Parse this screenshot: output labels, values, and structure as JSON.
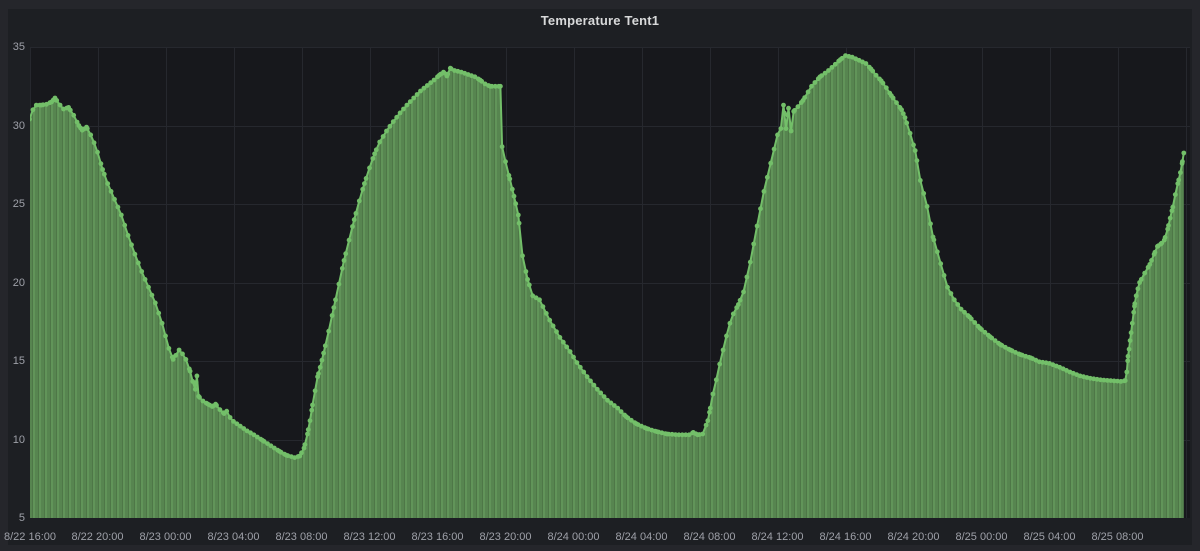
{
  "panel": {
    "title": "Temperature Tent1"
  },
  "colors": {
    "outer_background": "#25262b",
    "panel_background": "#1d1f23",
    "plot_background": "#17181c",
    "grid_line": "#26282e",
    "axis_label_text": "#9ea0a8",
    "title_text": "#d8d9da",
    "series_line": "#73bf69",
    "fill_stripe_dark": "#4e7747",
    "fill_stripe_mid": "#578550",
    "fill_stripe_light": "#619459"
  },
  "y_axis": {
    "tick_labels": [
      "35",
      "30",
      "25",
      "20",
      "15",
      "10",
      "5"
    ],
    "min": 5,
    "max": 35
  },
  "x_axis": {
    "tick_labels": [
      "8/22 16:00",
      "8/22 20:00",
      "8/23 00:00",
      "8/23 04:00",
      "8/23 08:00",
      "8/23 12:00",
      "8/23 16:00",
      "8/23 20:00",
      "8/24 00:00",
      "8/24 04:00",
      "8/24 08:00",
      "8/24 12:00",
      "8/24 16:00",
      "8/24 20:00",
      "8/25 00:00",
      "8/25 04:00",
      "8/25 08:00"
    ],
    "interval_hours": 4
  },
  "chart_data": {
    "type": "line",
    "title": "Temperature Tent1",
    "grid": true,
    "legend": false,
    "ylim": [
      5,
      35
    ],
    "y_ticks": [
      35,
      30,
      25,
      20,
      15,
      10,
      5
    ],
    "x_tick_labels": [
      "8/22 16:00",
      "8/22 20:00",
      "8/23 00:00",
      "8/23 04:00",
      "8/23 08:00",
      "8/23 12:00",
      "8/23 16:00",
      "8/23 20:00",
      "8/24 00:00",
      "8/24 04:00",
      "8/24 08:00",
      "8/24 12:00",
      "8/24 16:00",
      "8/24 20:00",
      "8/25 00:00",
      "8/25 04:00",
      "8/25 08:00"
    ],
    "x_tick_interval_hours": 4,
    "x_span_hours": 68,
    "x_unit": "hours after 8/22 16:00",
    "style": {
      "points_visible": true,
      "area_fill": "striped-green",
      "line_color": "#73bf69"
    },
    "series": [
      {
        "name": "Temperature Tent1",
        "points": [
          [
            0,
            30.4
          ],
          [
            0.2,
            31.0
          ],
          [
            0.4,
            31.3
          ],
          [
            0.7,
            31.3
          ],
          [
            1.0,
            31.35
          ],
          [
            1.3,
            31.5
          ],
          [
            1.5,
            31.75
          ],
          [
            1.8,
            31.3
          ],
          [
            2.0,
            31.05
          ],
          [
            2.3,
            31.15
          ],
          [
            2.6,
            30.65
          ],
          [
            2.9,
            30.0
          ],
          [
            3.1,
            29.7
          ],
          [
            3.35,
            29.9
          ],
          [
            3.6,
            29.4
          ],
          [
            3.8,
            28.9
          ],
          [
            4.0,
            28.3
          ],
          [
            4.3,
            27.2
          ],
          [
            4.6,
            26.3
          ],
          [
            5.0,
            25.3
          ],
          [
            5.4,
            24.3
          ],
          [
            5.8,
            23.0
          ],
          [
            6.2,
            21.8
          ],
          [
            6.6,
            20.7
          ],
          [
            7.0,
            19.7
          ],
          [
            7.4,
            18.7
          ],
          [
            7.8,
            17.4
          ],
          [
            8.0,
            16.6
          ],
          [
            8.2,
            15.8
          ],
          [
            8.45,
            15.1
          ],
          [
            8.8,
            15.7
          ],
          [
            9.0,
            15.45
          ],
          [
            9.2,
            15.1
          ],
          [
            9.45,
            14.35
          ],
          [
            9.6,
            13.7
          ],
          [
            9.75,
            13.2
          ],
          [
            9.85,
            14.05
          ],
          [
            9.95,
            12.75
          ],
          [
            10.2,
            12.45
          ],
          [
            10.5,
            12.25
          ],
          [
            10.75,
            12.1
          ],
          [
            10.95,
            12.25
          ],
          [
            11.2,
            11.9
          ],
          [
            11.45,
            11.65
          ],
          [
            11.6,
            11.8
          ],
          [
            11.8,
            11.4
          ],
          [
            12.0,
            11.15
          ],
          [
            12.4,
            10.85
          ],
          [
            12.8,
            10.55
          ],
          [
            13.2,
            10.3
          ],
          [
            13.7,
            9.95
          ],
          [
            14.2,
            9.6
          ],
          [
            14.7,
            9.25
          ],
          [
            15.1,
            9.0
          ],
          [
            15.6,
            8.85
          ],
          [
            15.9,
            8.95
          ],
          [
            16.15,
            9.45
          ],
          [
            16.35,
            10.35
          ],
          [
            16.5,
            11.2
          ],
          [
            16.65,
            12.2
          ],
          [
            16.8,
            13.1
          ],
          [
            16.95,
            14.0
          ],
          [
            17.1,
            14.6
          ],
          [
            17.3,
            15.5
          ],
          [
            17.6,
            16.9
          ],
          [
            17.9,
            18.4
          ],
          [
            18.2,
            19.9
          ],
          [
            18.5,
            21.4
          ],
          [
            18.8,
            22.7
          ],
          [
            19.1,
            24.0
          ],
          [
            19.4,
            25.2
          ],
          [
            19.7,
            26.3
          ],
          [
            20.0,
            27.3
          ],
          [
            20.3,
            28.2
          ],
          [
            20.6,
            28.95
          ],
          [
            21.0,
            29.65
          ],
          [
            21.4,
            30.25
          ],
          [
            21.8,
            30.8
          ],
          [
            22.2,
            31.3
          ],
          [
            22.6,
            31.75
          ],
          [
            23.0,
            32.2
          ],
          [
            23.4,
            32.55
          ],
          [
            23.8,
            32.9
          ],
          [
            24.1,
            33.2
          ],
          [
            24.35,
            33.4
          ],
          [
            24.55,
            33.15
          ],
          [
            24.75,
            33.65
          ],
          [
            25.0,
            33.5
          ],
          [
            25.4,
            33.4
          ],
          [
            25.8,
            33.25
          ],
          [
            26.2,
            33.1
          ],
          [
            26.5,
            32.9
          ],
          [
            26.8,
            32.65
          ],
          [
            27.1,
            32.5
          ],
          [
            27.7,
            32.5
          ],
          [
            27.8,
            28.65
          ],
          [
            28.0,
            27.7
          ],
          [
            28.25,
            26.6
          ],
          [
            28.5,
            25.5
          ],
          [
            28.75,
            24.3
          ],
          [
            29.0,
            21.7
          ],
          [
            29.3,
            20.2
          ],
          [
            29.6,
            19.15
          ],
          [
            30.0,
            18.9
          ],
          [
            30.6,
            17.6
          ],
          [
            31.2,
            16.5
          ],
          [
            31.8,
            15.6
          ],
          [
            32.2,
            14.9
          ],
          [
            32.8,
            14.0
          ],
          [
            33.4,
            13.2
          ],
          [
            34.0,
            12.5
          ],
          [
            34.6,
            12.0
          ],
          [
            35.1,
            11.45
          ],
          [
            35.7,
            11.0
          ],
          [
            36.3,
            10.7
          ],
          [
            36.9,
            10.5
          ],
          [
            37.5,
            10.35
          ],
          [
            38.2,
            10.3
          ],
          [
            38.8,
            10.3
          ],
          [
            39.05,
            10.45
          ],
          [
            39.3,
            10.3
          ],
          [
            39.6,
            10.35
          ],
          [
            39.9,
            11.2
          ],
          [
            40.05,
            12.0
          ],
          [
            40.2,
            12.9
          ],
          [
            40.4,
            13.8
          ],
          [
            40.6,
            14.8
          ],
          [
            40.8,
            15.7
          ],
          [
            41.0,
            16.6
          ],
          [
            41.2,
            17.4
          ],
          [
            41.4,
            18.0
          ],
          [
            41.7,
            18.6
          ],
          [
            42.0,
            19.4
          ],
          [
            42.4,
            21.3
          ],
          [
            42.8,
            23.6
          ],
          [
            43.2,
            25.8
          ],
          [
            43.6,
            27.6
          ],
          [
            44.0,
            29.4
          ],
          [
            44.2,
            29.8
          ],
          [
            44.35,
            31.3
          ],
          [
            44.5,
            29.8
          ],
          [
            44.65,
            31.1
          ],
          [
            44.8,
            29.65
          ],
          [
            44.95,
            30.9
          ],
          [
            45.2,
            31.2
          ],
          [
            45.5,
            31.6
          ],
          [
            46.0,
            32.5
          ],
          [
            46.5,
            33.1
          ],
          [
            47.0,
            33.5
          ],
          [
            47.4,
            33.9
          ],
          [
            47.7,
            34.2
          ],
          [
            48.0,
            34.45
          ],
          [
            48.4,
            34.35
          ],
          [
            48.8,
            34.15
          ],
          [
            49.2,
            33.95
          ],
          [
            49.5,
            33.6
          ],
          [
            49.8,
            33.2
          ],
          [
            50.1,
            32.85
          ],
          [
            50.4,
            32.4
          ],
          [
            50.7,
            31.9
          ],
          [
            51.0,
            31.45
          ],
          [
            51.3,
            31.0
          ],
          [
            51.5,
            30.5
          ],
          [
            51.8,
            29.5
          ],
          [
            52.1,
            28.4
          ],
          [
            52.4,
            26.5
          ],
          [
            52.8,
            24.85
          ],
          [
            53.15,
            22.9
          ],
          [
            53.6,
            21.2
          ],
          [
            54.0,
            19.7
          ],
          [
            54.4,
            18.9
          ],
          [
            54.8,
            18.3
          ],
          [
            55.3,
            17.8
          ],
          [
            55.9,
            17.1
          ],
          [
            56.5,
            16.55
          ],
          [
            57.1,
            16.05
          ],
          [
            57.7,
            15.7
          ],
          [
            58.3,
            15.4
          ],
          [
            58.9,
            15.2
          ],
          [
            59.4,
            14.95
          ],
          [
            60.0,
            14.85
          ],
          [
            60.6,
            14.6
          ],
          [
            61.2,
            14.3
          ],
          [
            61.8,
            14.05
          ],
          [
            62.4,
            13.9
          ],
          [
            63.0,
            13.8
          ],
          [
            63.6,
            13.75
          ],
          [
            64.2,
            13.7
          ],
          [
            64.45,
            13.75
          ],
          [
            64.55,
            14.3
          ],
          [
            64.62,
            15.3
          ],
          [
            64.68,
            15.75
          ],
          [
            64.74,
            16.3
          ],
          [
            64.8,
            16.8
          ],
          [
            64.87,
            17.4
          ],
          [
            64.95,
            18.1
          ],
          [
            65.02,
            18.65
          ],
          [
            65.1,
            19.15
          ],
          [
            65.2,
            19.6
          ],
          [
            65.3,
            20.0
          ],
          [
            65.6,
            20.6
          ],
          [
            65.9,
            21.15
          ],
          [
            66.15,
            21.8
          ],
          [
            66.35,
            22.3
          ],
          [
            66.55,
            22.45
          ],
          [
            66.75,
            22.7
          ],
          [
            66.95,
            23.4
          ],
          [
            67.1,
            24.1
          ],
          [
            67.25,
            24.8
          ],
          [
            67.4,
            25.6
          ],
          [
            67.55,
            26.3
          ],
          [
            67.7,
            27.0
          ],
          [
            67.82,
            27.7
          ],
          [
            67.9,
            28.25
          ]
        ]
      }
    ]
  }
}
